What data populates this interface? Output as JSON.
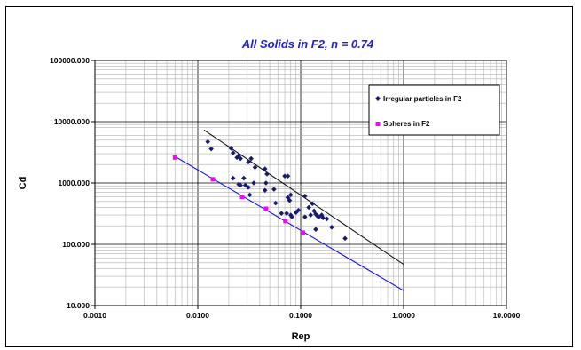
{
  "chart_data": {
    "type": "scatter",
    "title": "All Solids in F2, n = 0.74",
    "xlabel": "Rep",
    "ylabel": "Cd",
    "x_scale": "log",
    "y_scale": "log",
    "xlim": [
      0.001,
      10
    ],
    "ylim": [
      10,
      100000
    ],
    "x_ticks": [
      0.001,
      0.01,
      0.1,
      1,
      10
    ],
    "x_tick_labels": [
      "0.0010",
      "0.0100",
      "0.1000",
      "1.0000",
      "10.0000"
    ],
    "y_ticks": [
      10,
      100,
      1000,
      10000,
      100000
    ],
    "y_tick_labels": [
      "10.000",
      "100.000",
      "1000.000",
      "10000.000",
      "100000.000"
    ],
    "grid": true,
    "legend_position": "top-right",
    "colors": {
      "title": "#1f1fd6",
      "irregular": "#1a1a6e",
      "spheres": "#ff00ff",
      "trend_irregular": "#000000",
      "trend_spheres": "#0000ff",
      "grid": "#b0b0b0"
    },
    "series": [
      {
        "name": "Irregular particles in F2",
        "marker": "diamond",
        "points": [
          [
            0.0125,
            4700
          ],
          [
            0.0135,
            3600
          ],
          [
            0.021,
            3700
          ],
          [
            0.022,
            3100
          ],
          [
            0.024,
            2600
          ],
          [
            0.025,
            2800
          ],
          [
            0.026,
            2500
          ],
          [
            0.031,
            2200
          ],
          [
            0.033,
            2500
          ],
          [
            0.036,
            1800
          ],
          [
            0.045,
            1700
          ],
          [
            0.047,
            1400
          ],
          [
            0.028,
            1200
          ],
          [
            0.035,
            1000
          ],
          [
            0.025,
            950
          ],
          [
            0.026,
            920
          ],
          [
            0.029,
            920
          ],
          [
            0.031,
            850
          ],
          [
            0.032,
            640
          ],
          [
            0.022,
            1200
          ],
          [
            0.045,
            760
          ],
          [
            0.046,
            1000
          ],
          [
            0.055,
            790
          ],
          [
            0.057,
            470
          ],
          [
            0.07,
            1300
          ],
          [
            0.075,
            1300
          ],
          [
            0.075,
            580
          ],
          [
            0.078,
            520
          ],
          [
            0.08,
            640
          ],
          [
            0.065,
            320
          ],
          [
            0.073,
            320
          ],
          [
            0.08,
            300
          ],
          [
            0.082,
            280
          ],
          [
            0.09,
            330
          ],
          [
            0.095,
            360
          ],
          [
            0.11,
            610
          ],
          [
            0.11,
            280
          ],
          [
            0.12,
            400
          ],
          [
            0.13,
            460
          ],
          [
            0.125,
            300
          ],
          [
            0.135,
            350
          ],
          [
            0.14,
            310
          ],
          [
            0.145,
            290
          ],
          [
            0.15,
            280
          ],
          [
            0.16,
            300
          ],
          [
            0.165,
            270
          ],
          [
            0.18,
            260
          ],
          [
            0.14,
            175
          ],
          [
            0.2,
            190
          ],
          [
            0.27,
            125
          ]
        ]
      },
      {
        "name": "Spheres in F2",
        "marker": "square",
        "points": [
          [
            0.006,
            2600
          ],
          [
            0.014,
            1150
          ],
          [
            0.027,
            590
          ],
          [
            0.046,
            380
          ],
          [
            0.071,
            240
          ],
          [
            0.105,
            155
          ]
        ]
      }
    ],
    "trendlines": [
      {
        "series": "Irregular particles in F2",
        "from": [
          0.0115,
          7300
        ],
        "to": [
          1.0,
          47
        ]
      },
      {
        "series": "Spheres in F2",
        "from": [
          0.006,
          2700
        ],
        "to": [
          1.0,
          17.5
        ]
      }
    ]
  }
}
